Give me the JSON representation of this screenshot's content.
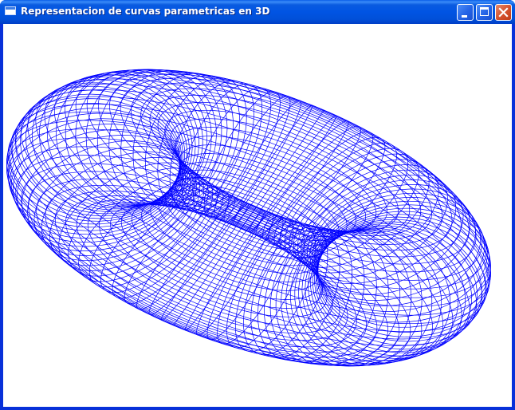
{
  "window": {
    "title": "Representacion de curvas parametricas en 3D",
    "icon": "app-window-icon",
    "controls": {
      "minimize_icon": "minimize-icon",
      "maximize_icon": "maximize-icon",
      "close_icon": "close-icon"
    }
  },
  "canvas": {
    "background": "#ffffff",
    "mesh_color": "#0000ff"
  }
}
